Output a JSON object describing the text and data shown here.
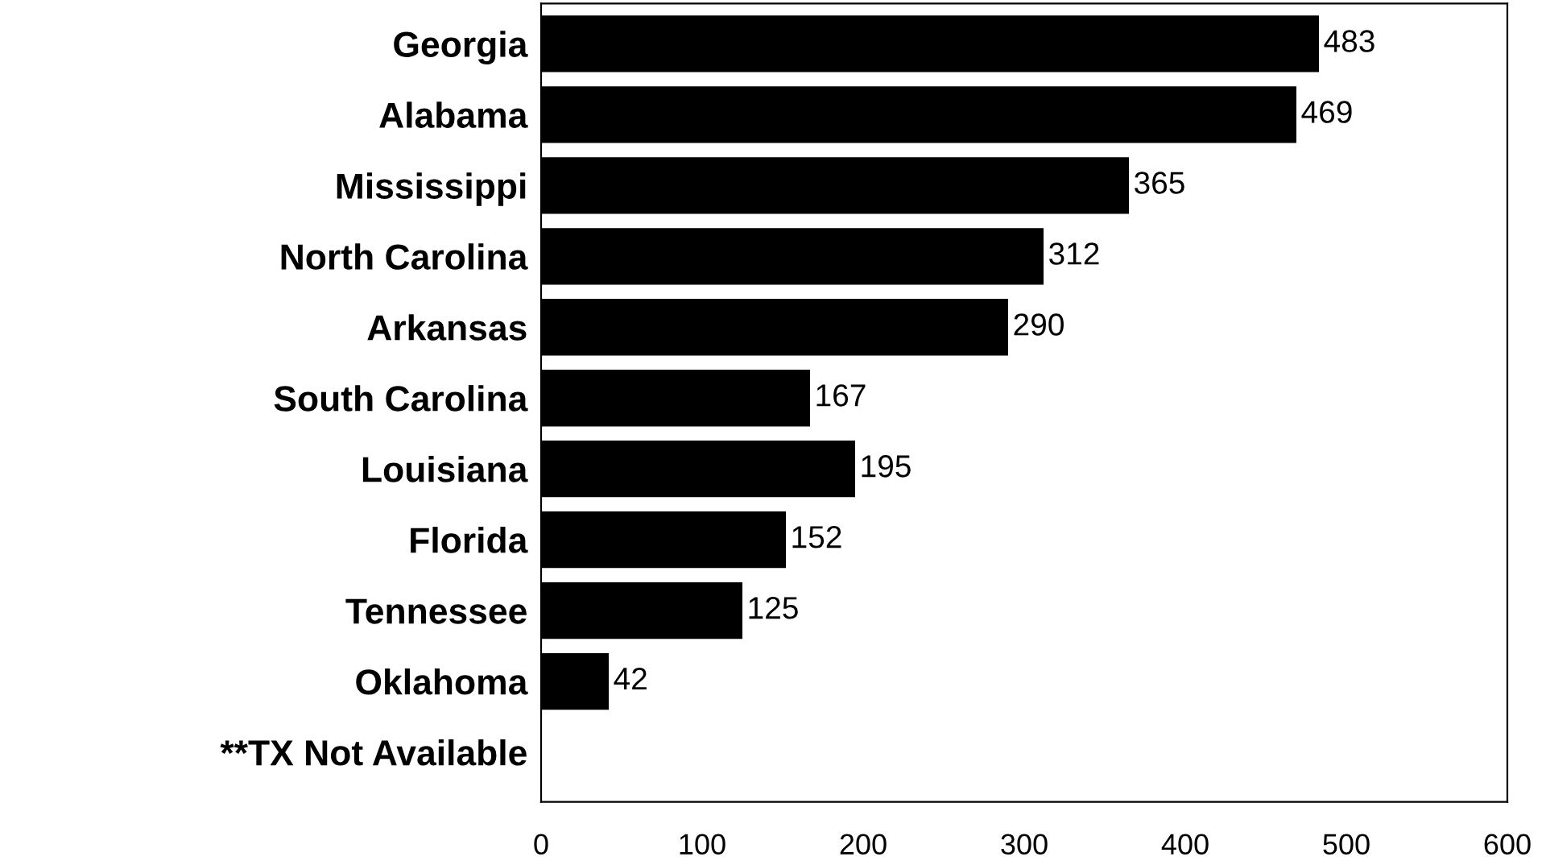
{
  "chart_data": {
    "type": "bar",
    "orientation": "horizontal",
    "categories": [
      "Georgia",
      "Alabama",
      "Mississippi",
      "North Carolina",
      "Arkansas",
      "South Carolina",
      "Louisiana",
      "Florida",
      "Tennessee",
      "Oklahoma",
      "**TX Not Available"
    ],
    "values": [
      483,
      469,
      365,
      312,
      290,
      167,
      195,
      152,
      125,
      42,
      null
    ],
    "color": "#000000",
    "xlim": [
      0,
      600
    ],
    "xticks": [
      0,
      100,
      200,
      300,
      400,
      500,
      600
    ],
    "data_labels": true,
    "grid": false,
    "legend": false
  }
}
